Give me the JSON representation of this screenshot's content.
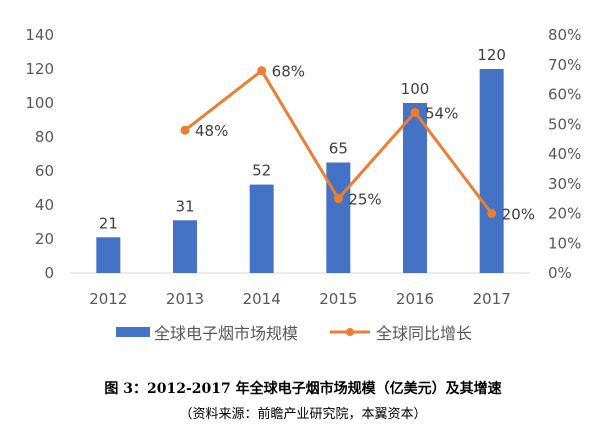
{
  "chart_data": {
    "type": "bar+line",
    "categories": [
      "2012",
      "2013",
      "2014",
      "2015",
      "2016",
      "2017"
    ],
    "series": [
      {
        "name": "全球电子烟市场规模",
        "type": "bar",
        "axis": "left",
        "values": [
          21,
          31,
          52,
          65,
          100,
          120
        ],
        "labels": [
          "21",
          "31",
          "52",
          "65",
          "100",
          "120"
        ],
        "color": "#4472C4"
      },
      {
        "name": "全球同比增长",
        "type": "line",
        "axis": "right",
        "values": [
          null,
          48,
          68,
          25,
          54,
          20
        ],
        "labels": [
          "",
          "48%",
          "68%",
          "25%",
          "54%",
          "20%"
        ],
        "color": "#ED7D31"
      }
    ],
    "y_left": {
      "min": 0,
      "max": 140,
      "ticks": [
        "0",
        "20",
        "40",
        "60",
        "80",
        "100",
        "120",
        "140"
      ]
    },
    "y_right": {
      "min": 0,
      "max": 80,
      "ticks": [
        "0%",
        "10%",
        "20%",
        "30%",
        "40%",
        "50%",
        "60%",
        "70%",
        "80%"
      ]
    },
    "legend": "bottom",
    "grid": false
  },
  "caption": {
    "title": "图 3：2012-2017 年全球电子烟市场规模（亿美元）及其增速",
    "source": "（资料来源：前瞻产业研究院，本翼资本）"
  }
}
